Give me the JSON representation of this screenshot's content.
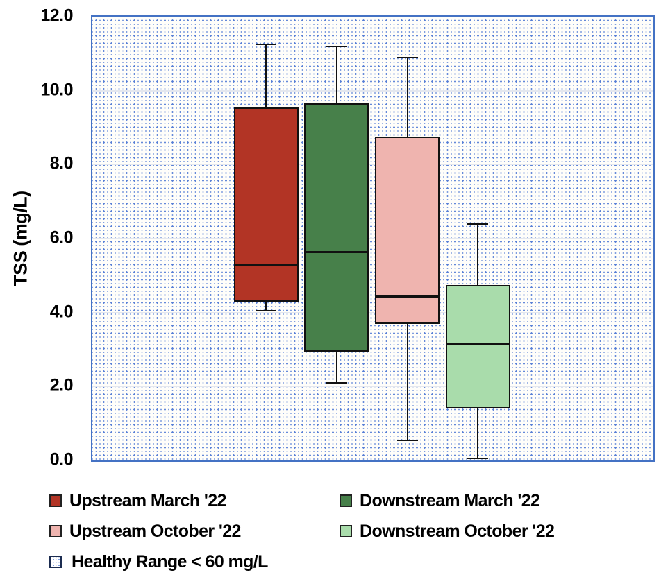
{
  "y_axis": {
    "title": "TSS (mg/L)",
    "ticks": [
      "12.0",
      "10.0",
      "8.0",
      "6.0",
      "4.0",
      "2.0",
      "0.0"
    ],
    "min": 0,
    "max": 12,
    "tick_step": 2
  },
  "chart_data": {
    "type": "boxplot",
    "title": "",
    "ylabel": "TSS (mg/L)",
    "ylim": [
      0,
      12
    ],
    "grid": "horizontal",
    "legend_position": "bottom",
    "background_fill": "Healthy Range < 60 mg/L (blue dotted pattern fills plot area)",
    "series": [
      {
        "name": "Upstream March '22",
        "color": "#b23425",
        "whisker_low": 4.05,
        "q1": 4.3,
        "median": 5.3,
        "q3": 9.55,
        "whisker_high": 11.25
      },
      {
        "name": "Downstream March '22",
        "color": "#47804a",
        "whisker_low": 2.1,
        "q1": 2.95,
        "median": 5.65,
        "q3": 9.65,
        "whisker_high": 11.2
      },
      {
        "name": "Upstream October '22",
        "color": "#efb4af",
        "whisker_low": 0.55,
        "q1": 3.7,
        "median": 4.45,
        "q3": 8.75,
        "whisker_high": 10.9
      },
      {
        "name": "Downstream October '22",
        "color": "#a9dcab",
        "whisker_low": 0.05,
        "q1": 1.4,
        "median": 3.15,
        "q3": 4.75,
        "whisker_high": 6.4
      }
    ]
  },
  "legend": {
    "healthy_label": "Healthy Range < 60 mg/L"
  },
  "colors": {
    "plot_border": "#4472c4",
    "pattern_dot": "#567ed6",
    "box_outline": "#111111",
    "gridline": "#e4e7ee"
  }
}
